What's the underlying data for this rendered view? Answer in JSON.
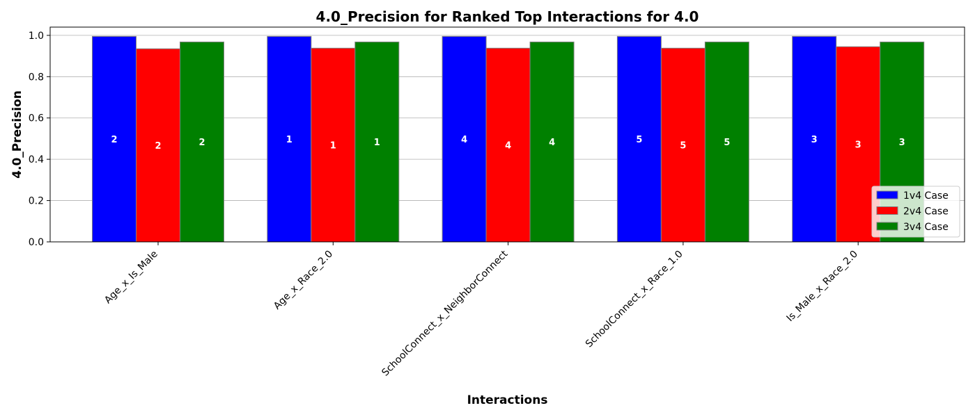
{
  "chart_data": {
    "type": "bar",
    "title": "4.0_Precision for Ranked Top Interactions for 4.0",
    "xlabel": "Interactions",
    "ylabel": "4.0_Precision",
    "ylim": [
      0,
      1.04
    ],
    "yticks": [
      "0.0",
      "0.2",
      "0.4",
      "0.6",
      "0.8",
      "1.0"
    ],
    "grid": "horizontal",
    "legend_position": "lower-right",
    "categories": [
      "Age_x_Is_Male",
      "Age_x_Race_2.0",
      "SchoolConnect_x_NeighborConnect",
      "SchoolConnect_x_Race_1.0",
      "Is_Male_x_Race_2.0"
    ],
    "series": [
      {
        "name": "1v4 Case",
        "color": "#0000ff",
        "values": [
          0.995,
          0.995,
          0.995,
          0.995,
          0.995
        ],
        "labels": [
          "2",
          "1",
          "4",
          "5",
          "3"
        ]
      },
      {
        "name": "2v4 Case",
        "color": "#ff0000",
        "values": [
          0.935,
          0.938,
          0.938,
          0.938,
          0.945
        ],
        "labels": [
          "2",
          "1",
          "4",
          "5",
          "3"
        ]
      },
      {
        "name": "3v4 Case",
        "color": "#008000",
        "values": [
          0.968,
          0.968,
          0.968,
          0.968,
          0.968
        ],
        "labels": [
          "2",
          "1",
          "4",
          "5",
          "3"
        ]
      }
    ]
  }
}
